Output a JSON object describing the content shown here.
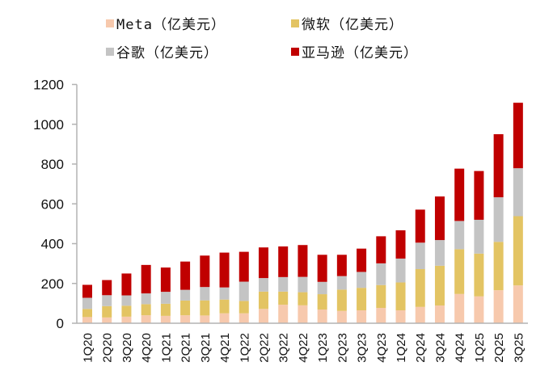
{
  "chart_data": {
    "type": "bar",
    "stacked": true,
    "title": "",
    "xlabel": "",
    "ylabel": "",
    "ylim": [
      0,
      1200
    ],
    "yticks": [
      0,
      200,
      400,
      600,
      800,
      1000,
      1200
    ],
    "grid": false,
    "legend_position": "top-center",
    "categories": [
      "1Q20",
      "2Q20",
      "3Q20",
      "4Q20",
      "1Q21",
      "2Q21",
      "3Q21",
      "4Q21",
      "1Q22",
      "2Q22",
      "3Q22",
      "4Q22",
      "1Q23",
      "2Q23",
      "3Q23",
      "4Q23",
      "1Q24",
      "2Q24",
      "3Q24",
      "4Q24",
      "1Q25",
      "2Q25",
      "3Q25"
    ],
    "series": [
      {
        "name": "Meta（亿美元）",
        "color": "#f7c9ad",
        "values": [
          31,
          29,
          33,
          40,
          37,
          40,
          39,
          50,
          50,
          72,
          93,
          90,
          69,
          62,
          65,
          77,
          65,
          82,
          89,
          147,
          135,
          166,
          190
        ]
      },
      {
        "name": "微软（亿美元）",
        "color": "#e3c463",
        "values": [
          41,
          57,
          55,
          56,
          61,
          74,
          76,
          69,
          62,
          87,
          66,
          66,
          77,
          107,
          113,
          115,
          140,
          190,
          200,
          225,
          215,
          243,
          348
        ]
      },
      {
        "name": "谷歌（亿美元）",
        "color": "#c4c4c4",
        "values": [
          56,
          55,
          52,
          54,
          60,
          54,
          67,
          61,
          97,
          68,
          73,
          77,
          62,
          68,
          80,
          109,
          120,
          133,
          129,
          142,
          170,
          224,
          241
        ]
      },
      {
        "name": "亚马逊（亿美元）",
        "color": "#c00000",
        "values": [
          65,
          76,
          110,
          143,
          122,
          142,
          158,
          175,
          150,
          154,
          154,
          160,
          136,
          107,
          117,
          136,
          142,
          166,
          219,
          263,
          245,
          317,
          329
        ]
      }
    ]
  }
}
